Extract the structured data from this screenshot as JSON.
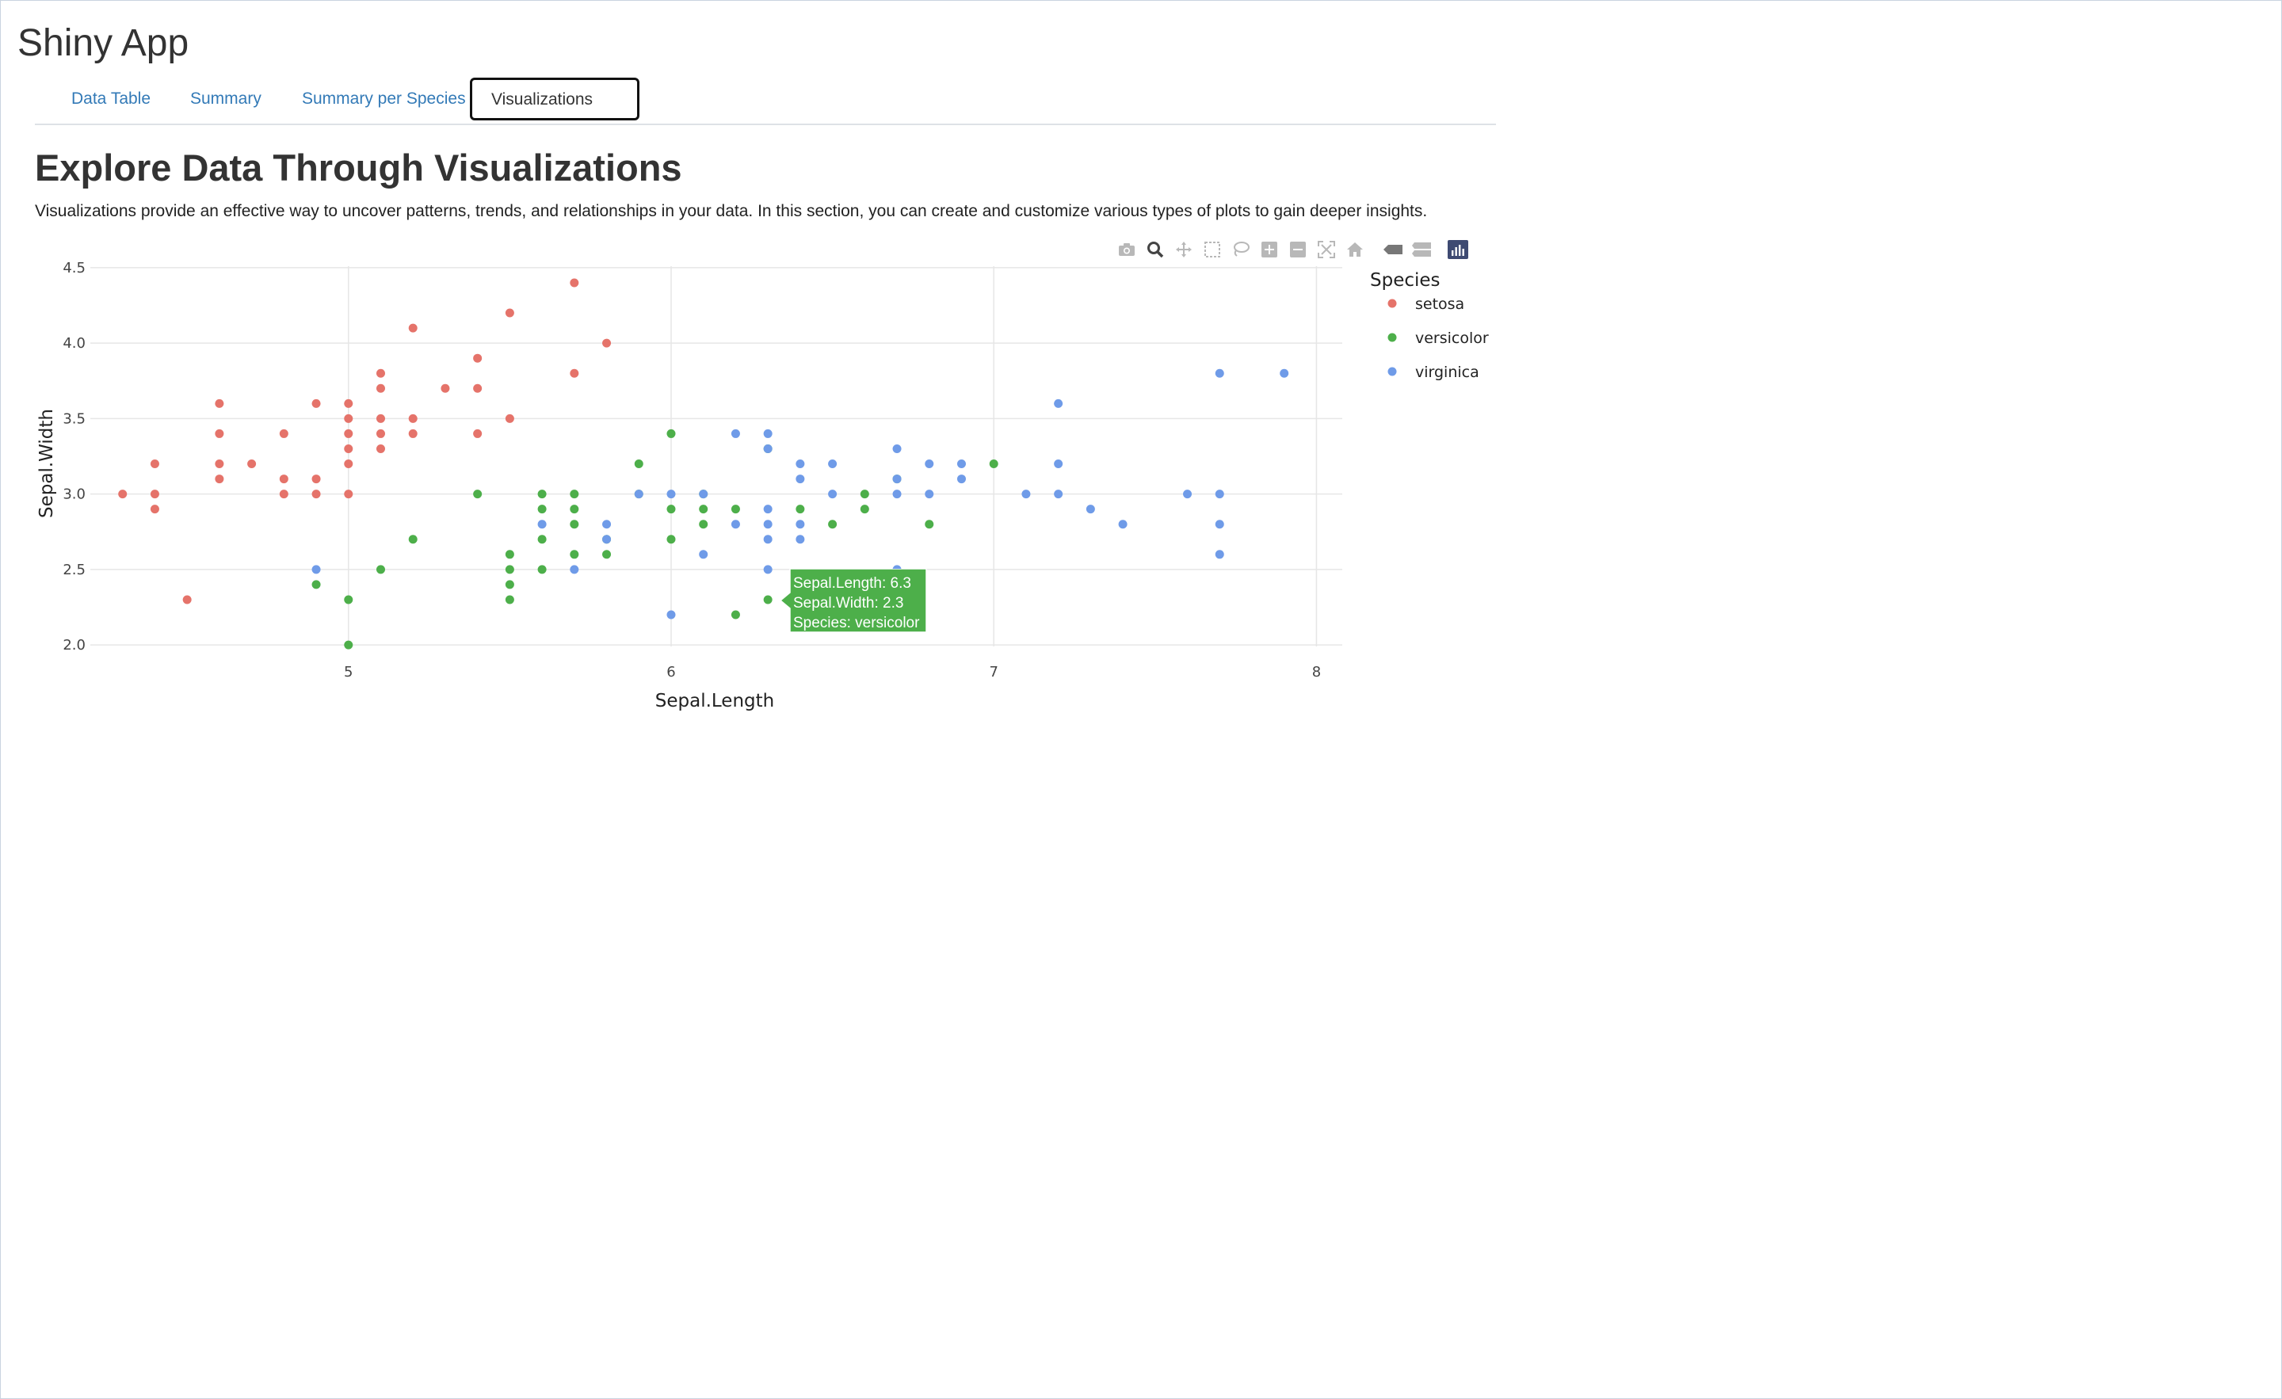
{
  "app": {
    "title": "Shiny App"
  },
  "tabs": [
    {
      "label": "Data Table",
      "active": false
    },
    {
      "label": "Summary",
      "active": false
    },
    {
      "label": "Summary per Species",
      "active": false
    },
    {
      "label": "Visualizations",
      "active": true
    }
  ],
  "section": {
    "title": "Explore Data Through Visualizations",
    "intro": "Visualizations provide an effective way to uncover patterns, trends, and relationships in your data. In this section, you can create and customize various types of plots to gain deeper insights."
  },
  "modebar": [
    "camera-icon",
    "zoom-icon",
    "pan-icon",
    "box-select-icon",
    "lasso-select-icon",
    "zoom-in-icon",
    "zoom-out-icon",
    "autoscale-icon",
    "reset-axes-icon",
    "hover-closest-icon",
    "hover-compare-icon",
    "plotly-logo-icon"
  ],
  "tooltip": {
    "lines": [
      "Sepal.Length: 6.3",
      "Sepal.Width: 2.3",
      "Species: versicolor"
    ],
    "color": "#4daf4a"
  },
  "chart_data": {
    "type": "scatter",
    "title": "",
    "xlabel": "Sepal.Length",
    "ylabel": "Sepal.Width",
    "xlim": [
      4.2,
      8.08
    ],
    "ylim": [
      1.99,
      4.51
    ],
    "xticks": [
      5,
      6,
      7,
      8
    ],
    "yticks": [
      2.0,
      2.5,
      3.0,
      3.5,
      4.0,
      4.5
    ],
    "ytick_labels": [
      "2.0",
      "2.5",
      "3.0",
      "3.5",
      "4.0",
      "4.5"
    ],
    "grid": true,
    "legend_title": "Species",
    "legend_position": "right",
    "series": [
      {
        "name": "setosa",
        "color": "#e5736a",
        "points": [
          [
            4.3,
            3.0
          ],
          [
            4.4,
            3.2
          ],
          [
            4.4,
            3.0
          ],
          [
            4.4,
            2.9
          ],
          [
            4.5,
            2.3
          ],
          [
            4.6,
            3.6
          ],
          [
            4.6,
            3.4
          ],
          [
            4.6,
            3.2
          ],
          [
            4.6,
            3.1
          ],
          [
            4.7,
            3.2
          ],
          [
            4.8,
            3.4
          ],
          [
            4.8,
            3.1
          ],
          [
            4.8,
            3.0
          ],
          [
            4.9,
            3.6
          ],
          [
            4.9,
            3.1
          ],
          [
            4.9,
            3.0
          ],
          [
            5.0,
            3.6
          ],
          [
            5.0,
            3.5
          ],
          [
            5.0,
            3.4
          ],
          [
            5.0,
            3.3
          ],
          [
            5.0,
            3.2
          ],
          [
            5.0,
            3.0
          ],
          [
            5.1,
            3.8
          ],
          [
            5.1,
            3.7
          ],
          [
            5.1,
            3.5
          ],
          [
            5.1,
            3.4
          ],
          [
            5.1,
            3.3
          ],
          [
            5.2,
            4.1
          ],
          [
            5.2,
            3.5
          ],
          [
            5.2,
            3.4
          ],
          [
            5.3,
            3.7
          ],
          [
            5.4,
            3.9
          ],
          [
            5.4,
            3.7
          ],
          [
            5.4,
            3.4
          ],
          [
            5.5,
            4.2
          ],
          [
            5.5,
            3.5
          ],
          [
            5.7,
            4.4
          ],
          [
            5.7,
            3.8
          ],
          [
            5.8,
            4.0
          ]
        ]
      },
      {
        "name": "versicolor",
        "color": "#4daf4a",
        "points": [
          [
            4.9,
            2.4
          ],
          [
            5.0,
            2.3
          ],
          [
            5.0,
            2.0
          ],
          [
            5.1,
            2.5
          ],
          [
            5.2,
            2.7
          ],
          [
            5.4,
            3.0
          ],
          [
            5.5,
            2.6
          ],
          [
            5.5,
            2.5
          ],
          [
            5.5,
            2.4
          ],
          [
            5.5,
            2.3
          ],
          [
            5.6,
            3.0
          ],
          [
            5.6,
            2.9
          ],
          [
            5.6,
            2.7
          ],
          [
            5.6,
            2.5
          ],
          [
            5.7,
            3.0
          ],
          [
            5.7,
            2.9
          ],
          [
            5.7,
            2.8
          ],
          [
            5.7,
            2.6
          ],
          [
            5.8,
            2.7
          ],
          [
            5.8,
            2.6
          ],
          [
            5.9,
            3.2
          ],
          [
            5.9,
            3.0
          ],
          [
            6.0,
            3.4
          ],
          [
            6.0,
            2.9
          ],
          [
            6.0,
            2.7
          ],
          [
            6.1,
            3.0
          ],
          [
            6.1,
            2.9
          ],
          [
            6.1,
            2.8
          ],
          [
            6.2,
            2.9
          ],
          [
            6.2,
            2.2
          ],
          [
            6.3,
            3.3
          ],
          [
            6.3,
            2.3
          ],
          [
            6.4,
            2.9
          ],
          [
            6.5,
            2.8
          ],
          [
            6.6,
            3.0
          ],
          [
            6.6,
            2.9
          ],
          [
            6.7,
            3.1
          ],
          [
            6.8,
            2.8
          ],
          [
            7.0,
            3.2
          ]
        ]
      },
      {
        "name": "virginica",
        "color": "#6f9be8",
        "points": [
          [
            4.9,
            2.5
          ],
          [
            5.6,
            2.8
          ],
          [
            5.7,
            2.5
          ],
          [
            5.8,
            2.8
          ],
          [
            5.8,
            2.7
          ],
          [
            5.9,
            3.0
          ],
          [
            6.0,
            3.0
          ],
          [
            6.0,
            2.2
          ],
          [
            6.1,
            3.0
          ],
          [
            6.1,
            2.6
          ],
          [
            6.2,
            3.4
          ],
          [
            6.2,
            2.8
          ],
          [
            6.3,
            3.4
          ],
          [
            6.3,
            3.3
          ],
          [
            6.3,
            2.9
          ],
          [
            6.3,
            2.8
          ],
          [
            6.3,
            2.7
          ],
          [
            6.3,
            2.5
          ],
          [
            6.4,
            3.2
          ],
          [
            6.4,
            3.1
          ],
          [
            6.4,
            2.8
          ],
          [
            6.4,
            2.7
          ],
          [
            6.5,
            3.2
          ],
          [
            6.5,
            3.0
          ],
          [
            6.7,
            3.3
          ],
          [
            6.7,
            3.1
          ],
          [
            6.7,
            3.0
          ],
          [
            6.7,
            2.5
          ],
          [
            6.8,
            3.2
          ],
          [
            6.8,
            3.0
          ],
          [
            6.9,
            3.2
          ],
          [
            6.9,
            3.1
          ],
          [
            7.1,
            3.0
          ],
          [
            7.2,
            3.6
          ],
          [
            7.2,
            3.2
          ],
          [
            7.2,
            3.0
          ],
          [
            7.3,
            2.9
          ],
          [
            7.4,
            2.8
          ],
          [
            7.6,
            3.0
          ],
          [
            7.7,
            3.8
          ],
          [
            7.7,
            3.0
          ],
          [
            7.7,
            2.8
          ],
          [
            7.7,
            2.6
          ],
          [
            7.9,
            3.8
          ]
        ]
      }
    ]
  }
}
